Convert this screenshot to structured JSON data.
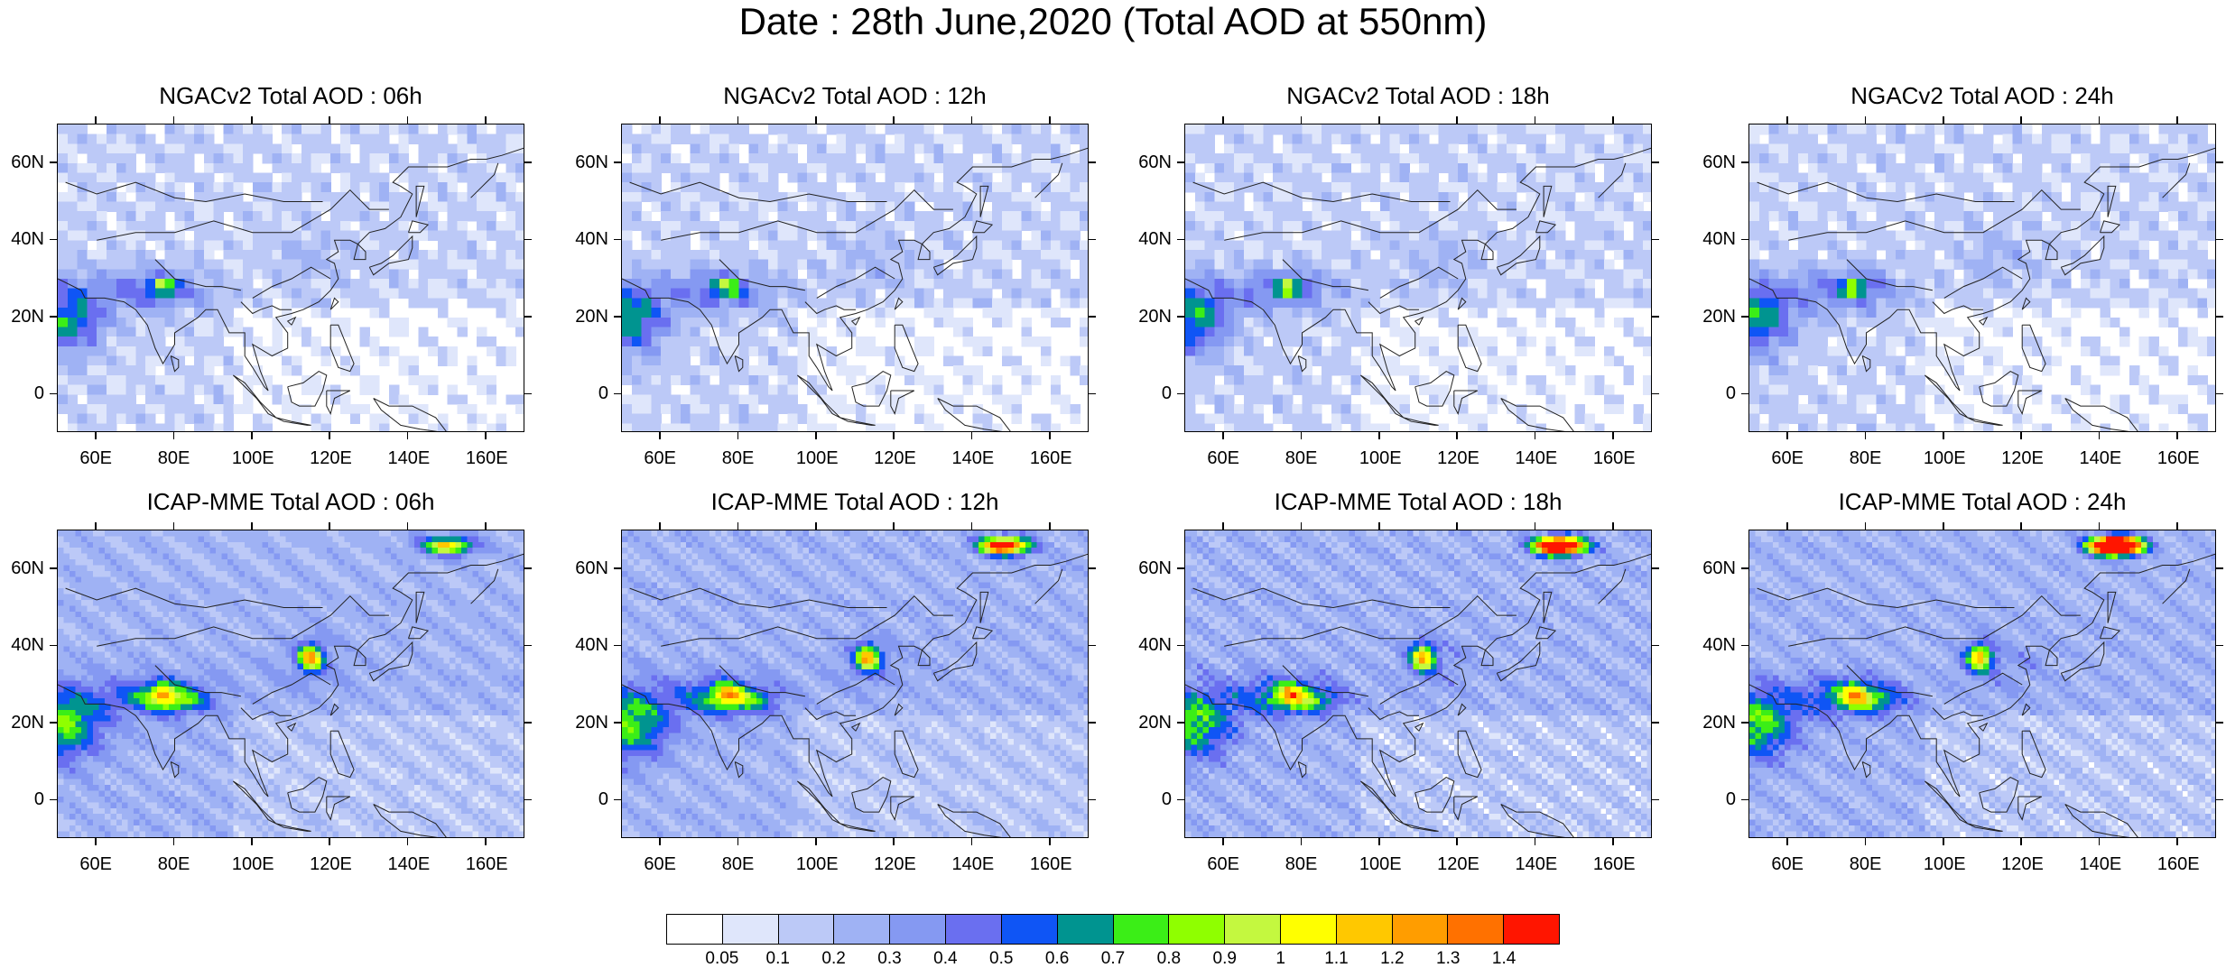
{
  "title": "Date : 28th June,2020 (Total AOD at 550nm)",
  "panels": [
    {
      "title": "NGACv2 Total AOD : 06h",
      "model": "NGACv2",
      "hour": "06h"
    },
    {
      "title": "NGACv2 Total AOD : 12h",
      "model": "NGACv2",
      "hour": "12h"
    },
    {
      "title": "NGACv2 Total AOD : 18h",
      "model": "NGACv2",
      "hour": "18h"
    },
    {
      "title": "NGACv2 Total AOD : 24h",
      "model": "NGACv2",
      "hour": "24h"
    },
    {
      "title": "ICAP-MME Total AOD : 06h",
      "model": "ICAP-MME",
      "hour": "06h"
    },
    {
      "title": "ICAP-MME Total AOD : 12h",
      "model": "ICAP-MME",
      "hour": "12h"
    },
    {
      "title": "ICAP-MME Total AOD : 18h",
      "model": "ICAP-MME",
      "hour": "18h"
    },
    {
      "title": "ICAP-MME Total AOD : 24h",
      "model": "ICAP-MME",
      "hour": "24h"
    }
  ],
  "lat_ticks": [
    "60N",
    "40N",
    "20N",
    "0"
  ],
  "lat_values": [
    60,
    40,
    20,
    0
  ],
  "lon_ticks": [
    "60E",
    "80E",
    "100E",
    "120E",
    "140E",
    "160E"
  ],
  "lon_values": [
    60,
    80,
    100,
    120,
    140,
    160
  ],
  "lon_range": [
    50,
    170
  ],
  "lat_range": [
    -10,
    70
  ],
  "colorbar": {
    "labels": [
      "0.05",
      "0.1",
      "0.2",
      "0.3",
      "0.4",
      "0.5",
      "0.6",
      "0.7",
      "0.8",
      "0.9",
      "1",
      "1.1",
      "1.2",
      "1.3",
      "1.4"
    ],
    "colors": [
      "#ffffff",
      "#dfe6fb",
      "#bcc9f7",
      "#9fb2f4",
      "#8599f2",
      "#6a6ff0",
      "#0f55f5",
      "#009490",
      "#3bee17",
      "#8fff00",
      "#c4f83f",
      "#ffff00",
      "#ffc800",
      "#ff9d00",
      "#ff7100",
      "#ff1500"
    ]
  }
}
